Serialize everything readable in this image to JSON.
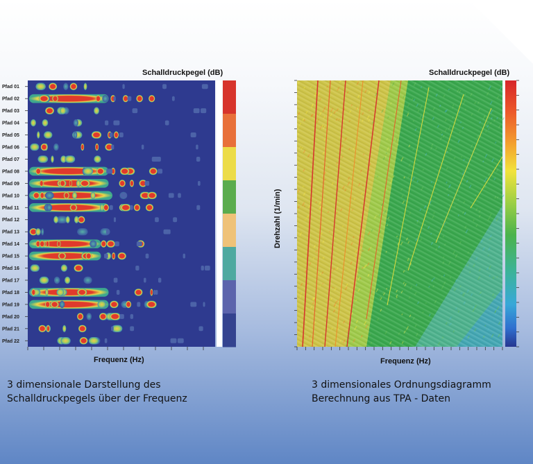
{
  "chart_data": [
    {
      "type": "heatmap",
      "legend_title": "Schalldruckpegel (dB)",
      "xlabel": "Frequenz (Hz)",
      "categories": [
        "Pfad 01",
        "Pfad 02",
        "Pfad 03",
        "Pfad 04",
        "Pfad 05",
        "Pfad 06",
        "Pfad 07",
        "Pfad 08",
        "Pfad 09",
        "Pfad 10",
        "Pfad 11",
        "Pfad 12",
        "Pfad 13",
        "Pfad 14",
        "Pfad 15",
        "Pfad 16",
        "Pfad 17",
        "Pfad 18",
        "Pfad 19",
        "Pfad 20",
        "Pfad 21",
        "Pfad 22"
      ],
      "row_intensity": [
        0.45,
        0.95,
        0.25,
        0.15,
        0.6,
        0.75,
        0.3,
        0.95,
        0.95,
        1.0,
        0.95,
        0.4,
        0.3,
        0.85,
        0.85,
        0.2,
        0.15,
        0.95,
        0.95,
        0.7,
        0.65,
        0.4
      ],
      "legend_colors": [
        "#d7342c",
        "#e8703a",
        "#ecdc48",
        "#5aac4e",
        "#efc278",
        "#4ea9a0",
        "#5c64ac",
        "#34438f"
      ],
      "background_color": "#2e3a8f"
    },
    {
      "type": "heatmap",
      "legend_title": "Schalldruckpegel (dB)",
      "xlabel": "Frequenz (Hz)",
      "ylabel": "Drehzahl (1/min)",
      "colorscale": [
        "#d7262a",
        "#f08a2a",
        "#f2e33c",
        "#7cc24a",
        "#3aa84e",
        "#3bb7c9",
        "#2f6fcf",
        "#263690"
      ]
    }
  ],
  "captions": {
    "left_line1": "3 dimensionale Darstellung des",
    "left_line2": "Schalldruckpegels über der Frequenz",
    "right_line1": "3 dimensionales Ordnungsdiagramm",
    "right_line2": "Berechnung aus TPA - Daten"
  }
}
